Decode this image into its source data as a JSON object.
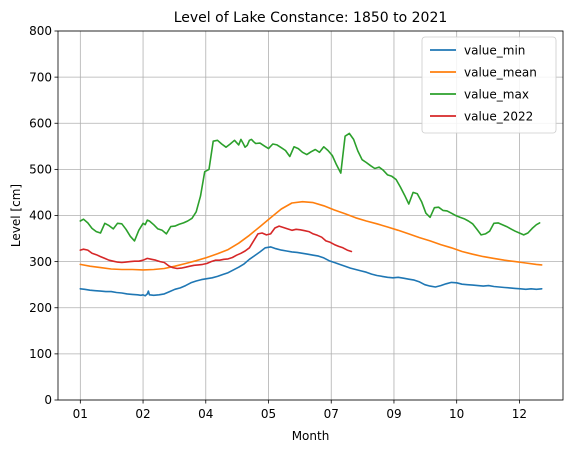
{
  "chart_data": {
    "type": "line",
    "title": "Level of Lake Constance: 1850 to 2021",
    "xlabel": "Month",
    "ylabel": "Level [cm]",
    "ylim": [
      0,
      800
    ],
    "yticks": [
      0,
      100,
      200,
      300,
      400,
      500,
      600,
      700,
      800
    ],
    "xticks": [
      {
        "label": "01",
        "day": 1
      },
      {
        "label": "02",
        "day": 60
      },
      {
        "label": "04",
        "day": 119
      },
      {
        "label": "05",
        "day": 178
      },
      {
        "label": "07",
        "day": 237
      },
      {
        "label": "09",
        "day": 296
      },
      {
        "label": "10",
        "day": 355
      },
      {
        "label": "12",
        "day": 414
      }
    ],
    "grid": true,
    "legend_position": "top-right",
    "series": [
      {
        "name": "value_min",
        "color": "#1f77b4",
        "x": [
          1,
          5,
          10,
          15,
          20,
          25,
          30,
          35,
          40,
          45,
          50,
          55,
          58,
          60,
          62,
          64,
          65,
          66,
          70,
          75,
          80,
          85,
          90,
          95,
          100,
          105,
          110,
          115,
          120,
          125,
          130,
          135,
          140,
          145,
          150,
          155,
          160,
          165,
          170,
          175,
          180,
          185,
          190,
          195,
          200,
          205,
          210,
          215,
          220,
          225,
          230,
          235,
          240,
          245,
          250,
          255,
          260,
          265,
          270,
          275,
          280,
          285,
          290,
          295,
          300,
          305,
          310,
          315,
          320,
          325,
          330,
          335,
          340,
          345,
          350,
          355,
          360,
          365,
          370,
          375,
          380,
          385,
          390,
          395,
          400,
          405,
          410,
          415,
          420,
          425,
          430,
          435
        ],
        "y": [
          241,
          240,
          238,
          237,
          236,
          235,
          235,
          233,
          232,
          230,
          229,
          228,
          227,
          228,
          226,
          230,
          236,
          228,
          227,
          228,
          230,
          235,
          240,
          243,
          248,
          254,
          258,
          261,
          263,
          265,
          268,
          272,
          276,
          282,
          288,
          295,
          305,
          313,
          321,
          330,
          332,
          328,
          325,
          323,
          321,
          320,
          318,
          316,
          314,
          312,
          308,
          302,
          298,
          294,
          290,
          286,
          283,
          280,
          277,
          273,
          270,
          268,
          266,
          265,
          266,
          264,
          262,
          260,
          256,
          250,
          247,
          245,
          248,
          252,
          255,
          254,
          251,
          250,
          249,
          248,
          247,
          248,
          246,
          245,
          244,
          243,
          242,
          241,
          240,
          241,
          240,
          241
        ]
      },
      {
        "name": "value_mean",
        "color": "#ff7f0e",
        "x": [
          1,
          10,
          20,
          30,
          40,
          50,
          60,
          70,
          80,
          90,
          100,
          110,
          120,
          130,
          140,
          150,
          160,
          170,
          180,
          190,
          200,
          210,
          220,
          230,
          240,
          250,
          260,
          270,
          280,
          290,
          300,
          310,
          320,
          330,
          340,
          350,
          360,
          370,
          380,
          390,
          400,
          410,
          420,
          430,
          435
        ],
        "y": [
          294,
          290,
          287,
          284,
          283,
          283,
          282,
          283,
          285,
          290,
          296,
          302,
          309,
          317,
          326,
          340,
          357,
          376,
          395,
          414,
          427,
          430,
          428,
          421,
          412,
          404,
          395,
          388,
          382,
          375,
          368,
          360,
          352,
          345,
          337,
          330,
          322,
          316,
          311,
          307,
          303,
          300,
          297,
          294,
          293
        ]
      },
      {
        "name": "value_max",
        "color": "#2ca02c",
        "x": [
          1,
          4,
          8,
          12,
          16,
          20,
          24,
          28,
          32,
          36,
          40,
          44,
          48,
          52,
          56,
          60,
          62,
          64,
          66,
          70,
          74,
          78,
          82,
          86,
          90,
          94,
          98,
          102,
          106,
          110,
          114,
          118,
          122,
          126,
          130,
          134,
          138,
          142,
          146,
          150,
          152,
          154,
          156,
          158,
          160,
          162,
          164,
          166,
          170,
          174,
          178,
          182,
          186,
          190,
          194,
          198,
          202,
          206,
          210,
          214,
          218,
          222,
          226,
          230,
          234,
          238,
          242,
          246,
          250,
          254,
          258,
          262,
          266,
          270,
          274,
          278,
          282,
          286,
          290,
          294,
          298,
          302,
          306,
          310,
          314,
          318,
          322,
          326,
          330,
          334,
          338,
          342,
          346,
          350,
          354,
          358,
          362,
          366,
          370,
          374,
          378,
          382,
          386,
          390,
          394,
          398,
          402,
          406,
          410,
          414,
          418,
          422,
          426,
          430,
          433
        ],
        "y": [
          388,
          392,
          384,
          372,
          365,
          362,
          383,
          378,
          371,
          383,
          382,
          370,
          355,
          345,
          368,
          383,
          380,
          390,
          388,
          380,
          371,
          368,
          360,
          376,
          377,
          381,
          384,
          388,
          394,
          408,
          442,
          495,
          500,
          561,
          563,
          555,
          548,
          555,
          563,
          553,
          565,
          557,
          548,
          552,
          563,
          565,
          560,
          556,
          557,
          551,
          545,
          555,
          553,
          547,
          541,
          528,
          549,
          545,
          537,
          532,
          538,
          543,
          537,
          549,
          541,
          530,
          510,
          492,
          572,
          578,
          565,
          540,
          521,
          515,
          508,
          502,
          505,
          498,
          488,
          485,
          478,
          462,
          444,
          425,
          450,
          447,
          430,
          405,
          396,
          417,
          418,
          411,
          410,
          405,
          400,
          396,
          393,
          388,
          382,
          370,
          358,
          360,
          366,
          383,
          384,
          380,
          376,
          371,
          366,
          362,
          358,
          362,
          372,
          380,
          384
        ],
        "note": ""
      },
      {
        "name": "value_2022",
        "color": "#d62728",
        "x": [
          1,
          4,
          8,
          12,
          16,
          20,
          24,
          28,
          32,
          36,
          40,
          44,
          48,
          52,
          56,
          60,
          64,
          68,
          72,
          76,
          80,
          84,
          88,
          92,
          96,
          100,
          104,
          108,
          112,
          116,
          120,
          124,
          128,
          132,
          136,
          140,
          144,
          148,
          152,
          156,
          160,
          164,
          168,
          172,
          176,
          180,
          184,
          188,
          192,
          196,
          200,
          204,
          208,
          212,
          216,
          220,
          224,
          228,
          232,
          236,
          240,
          244,
          248,
          252,
          256
        ],
        "y": [
          325,
          327,
          325,
          318,
          315,
          311,
          307,
          303,
          301,
          299,
          298,
          299,
          300,
          301,
          301,
          303,
          307,
          305,
          303,
          300,
          298,
          291,
          287,
          285,
          286,
          288,
          290,
          292,
          293,
          294,
          296,
          300,
          303,
          303,
          305,
          306,
          309,
          314,
          318,
          323,
          330,
          345,
          360,
          362,
          358,
          360,
          373,
          377,
          374,
          371,
          368,
          370,
          369,
          367,
          365,
          360,
          357,
          353,
          345,
          342,
          337,
          333,
          330,
          325,
          322
        ]
      }
    ]
  },
  "legend": {
    "items": [
      "value_min",
      "value_mean",
      "value_max",
      "value_2022"
    ]
  }
}
